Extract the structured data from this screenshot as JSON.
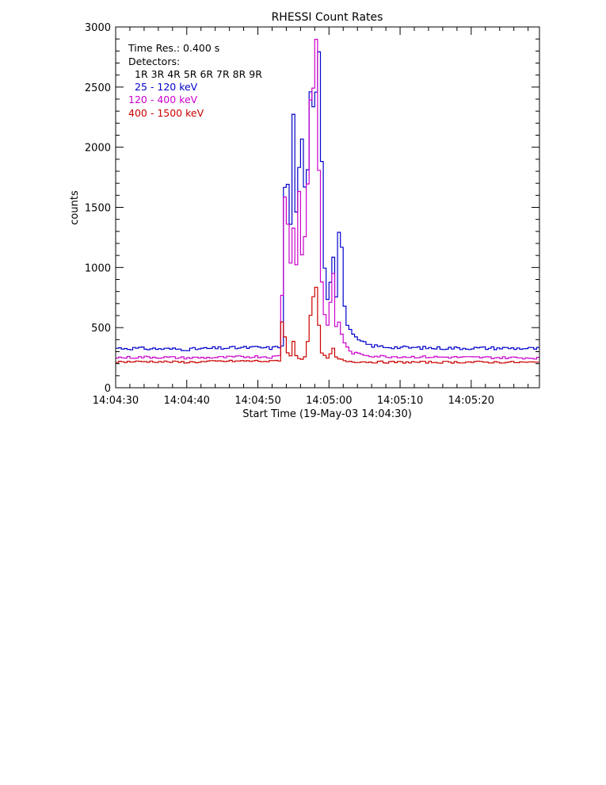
{
  "chart_data": {
    "type": "line",
    "title": "RHESSI Count Rates",
    "xlabel": "Start Time (19-May-03 14:04:30)",
    "ylabel": "counts",
    "xlim": [
      0,
      59.6
    ],
    "ylim": [
      0,
      3000
    ],
    "x_ticks": [
      0,
      10,
      20,
      30,
      40,
      50
    ],
    "x_tick_labels": [
      "14:04:30",
      "14:04:40",
      "14:04:50",
      "14:05:00",
      "14:05:10",
      "14:05:20"
    ],
    "y_ticks": [
      0,
      500,
      1000,
      1500,
      2000,
      2500,
      3000
    ],
    "y_tick_labels": [
      "0",
      "500",
      "1000",
      "1500",
      "2000",
      "2500",
      "3000"
    ],
    "legend": {
      "placement": "top-left",
      "time_res": "Time Res.: 0.400 s",
      "detectors_label": "Detectors:",
      "detectors": "1R 3R 4R 5R 6R 7R 8R 9R"
    },
    "x_unit": "seconds after 14:04:30",
    "series": [
      {
        "name": "25 - 120 keV",
        "color": "#0000cc",
        "x": [
          0,
          5,
          10,
          15,
          20,
          22,
          23,
          23.4,
          23.8,
          24.2,
          24.6,
          25,
          25.4,
          25.8,
          26.2,
          26.6,
          27,
          27.4,
          27.8,
          28.2,
          28.6,
          29,
          29.4,
          29.8,
          30.2,
          30.6,
          31,
          31.4,
          31.8,
          32.2,
          32.6,
          33,
          33.4,
          34,
          35,
          36,
          38,
          40,
          45,
          50,
          55,
          59.6
        ],
        "values": [
          330,
          325,
          320,
          330,
          335,
          330,
          340,
          360,
          1650,
          1700,
          1350,
          2280,
          1450,
          1850,
          2050,
          1650,
          1800,
          2450,
          2350,
          2480,
          2800,
          1900,
          1000,
          750,
          900,
          1100,
          750,
          1300,
          1150,
          700,
          520,
          470,
          430,
          400,
          370,
          350,
          340,
          335,
          330,
          330,
          330,
          325
        ]
      },
      {
        "name": "120 - 400 keV",
        "color": "#cc00cc",
        "x": [
          0,
          5,
          10,
          15,
          20,
          22,
          23,
          23.4,
          23.8,
          24.2,
          24.6,
          25,
          25.4,
          25.8,
          26.2,
          26.6,
          27,
          27.4,
          27.8,
          28.2,
          28.6,
          29,
          29.4,
          29.8,
          30.2,
          30.6,
          31,
          31.4,
          31.8,
          32.2,
          32.6,
          33,
          33.4,
          34,
          35,
          36,
          38,
          40,
          45,
          50,
          55,
          59.6
        ],
        "values": [
          250,
          255,
          248,
          252,
          260,
          255,
          265,
          780,
          1600,
          1350,
          1050,
          1350,
          1020,
          1650,
          1100,
          1250,
          1700,
          2400,
          2500,
          2900,
          1800,
          900,
          600,
          500,
          720,
          950,
          500,
          550,
          450,
          380,
          330,
          300,
          290,
          280,
          275,
          265,
          260,
          258,
          255,
          252,
          250,
          248
        ]
      },
      {
        "name": "400 - 1500 keV",
        "color": "#cc0000",
        "x": [
          0,
          5,
          10,
          15,
          20,
          22,
          23,
          23.4,
          23.8,
          24.2,
          24.6,
          25,
          25.4,
          25.8,
          26.2,
          26.6,
          27,
          27.4,
          27.8,
          28.2,
          28.6,
          29,
          29.4,
          29.8,
          30.2,
          30.6,
          31,
          31.4,
          31.8,
          32.2,
          32.6,
          33,
          33.4,
          34,
          35,
          36,
          38,
          40,
          45,
          50,
          55,
          59.6
        ],
        "values": [
          215,
          218,
          212,
          220,
          222,
          218,
          230,
          550,
          420,
          300,
          260,
          380,
          270,
          250,
          240,
          260,
          400,
          580,
          760,
          820,
          500,
          300,
          260,
          240,
          280,
          320,
          250,
          240,
          230,
          225,
          222,
          220,
          218,
          216,
          215,
          214,
          213,
          212,
          212,
          213,
          212,
          210
        ]
      }
    ]
  }
}
